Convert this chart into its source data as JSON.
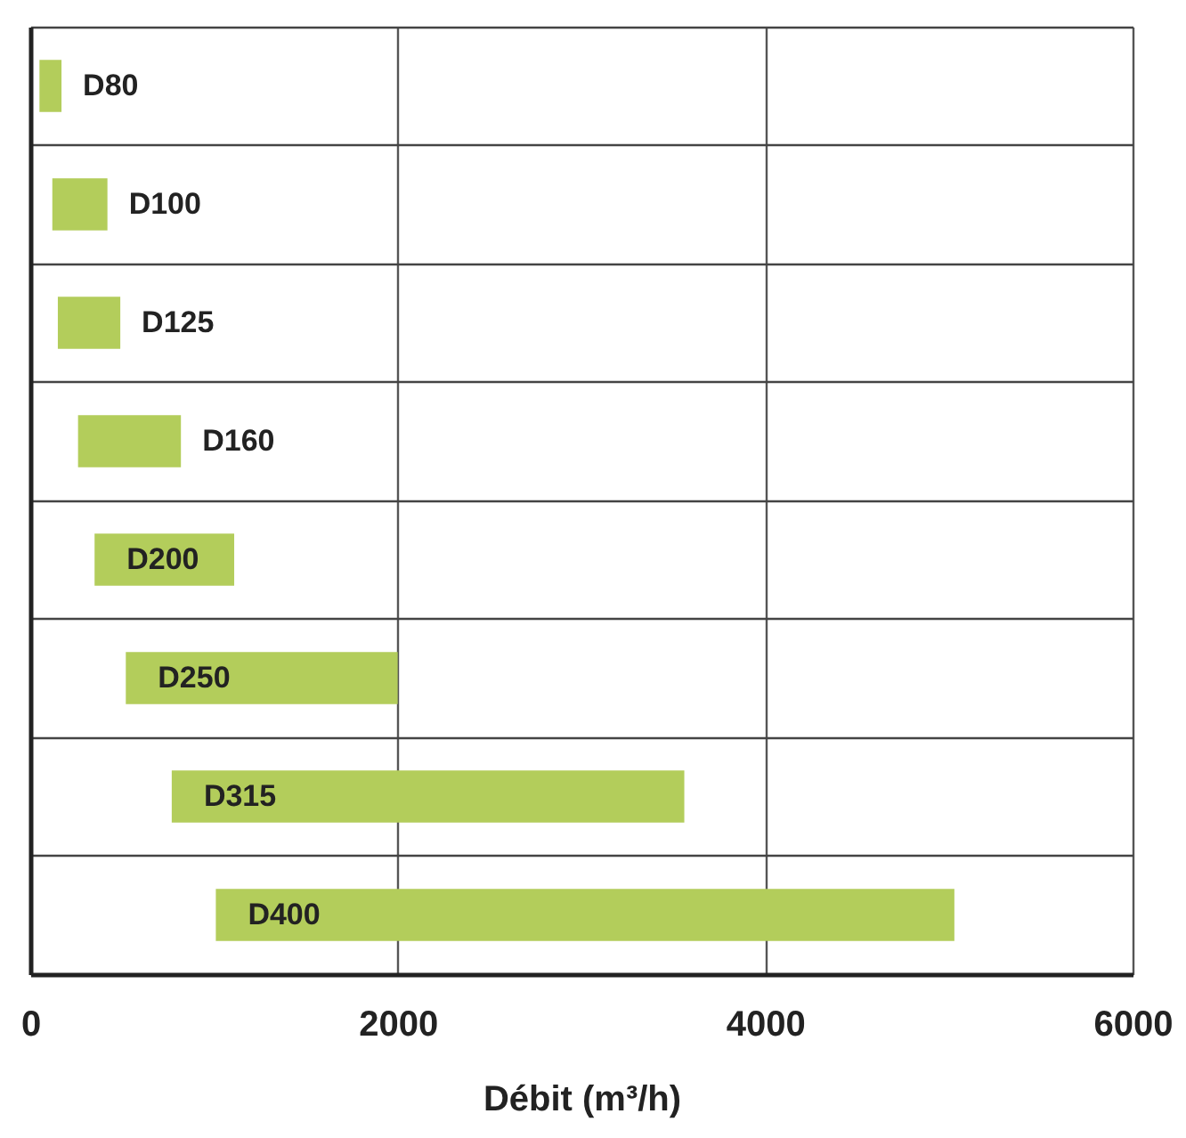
{
  "chart_data": {
    "type": "bar",
    "orientation": "horizontal",
    "xlabel": "Débit (m³/h)",
    "categories": [
      "D80",
      "D100",
      "D125",
      "D160",
      "D200",
      "D250",
      "D315",
      "D400"
    ],
    "base": [
      50,
      120,
      150,
      260,
      350,
      520,
      770,
      1010
    ],
    "values": [
      120,
      300,
      340,
      560,
      760,
      1480,
      2790,
      4020
    ],
    "color": "#b3cd5b",
    "xlim": [
      0,
      6000
    ],
    "xticks": [
      0,
      2000,
      4000,
      6000
    ],
    "grid": true,
    "tick_labels": "x"
  }
}
